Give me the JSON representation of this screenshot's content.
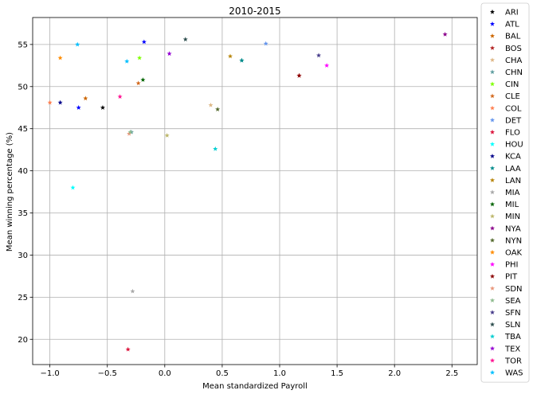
{
  "chart_data": {
    "type": "scatter",
    "title": "2010-2015",
    "xlabel": "Mean standardized Payroll",
    "ylabel": "Mean winning percentage (%)",
    "xlim": [
      -1.15,
      2.72
    ],
    "ylim": [
      17.0,
      58.2
    ],
    "xticks": [
      -1.0,
      -0.5,
      0.0,
      0.5,
      1.0,
      1.5,
      2.0,
      2.5
    ],
    "xtick_labels": [
      "−1.0",
      "−0.5",
      "0.0",
      "0.5",
      "1.0",
      "1.5",
      "2.0",
      "2.5"
    ],
    "yticks": [
      20,
      25,
      30,
      35,
      40,
      45,
      50,
      55
    ],
    "ytick_labels": [
      "20",
      "25",
      "30",
      "35",
      "40",
      "45",
      "50",
      "55"
    ],
    "grid": true,
    "legend_position": "outside-right",
    "marker": "star",
    "series": [
      {
        "name": "ARI",
        "color": "#000000",
        "x": -0.54,
        "y": 47.5
      },
      {
        "name": "ATL",
        "color": "#0000ff",
        "x": -0.75,
        "y": 47.5
      },
      {
        "name": "BAL",
        "color": "#cc6600",
        "x": -0.69,
        "y": 48.6
      },
      {
        "name": "BOS",
        "color": "#b22222",
        "x": 1.17,
        "y": 51.3
      },
      {
        "name": "CHA",
        "color": "#deb887",
        "x": 0.4,
        "y": 47.8
      },
      {
        "name": "CHN",
        "color": "#5f9ea0",
        "x": -0.29,
        "y": 44.6
      },
      {
        "name": "CIN",
        "color": "#7fff00",
        "x": -0.22,
        "y": 53.4
      },
      {
        "name": "CLE",
        "color": "#d2691e",
        "x": -0.23,
        "y": 50.4
      },
      {
        "name": "COL",
        "color": "#ff7f50",
        "x": -1.0,
        "y": 48.1
      },
      {
        "name": "DET",
        "color": "#6495ed",
        "x": 0.88,
        "y": 55.1
      },
      {
        "name": "FLO",
        "color": "#dc143c",
        "x": -0.32,
        "y": 18.8
      },
      {
        "name": "HOU",
        "color": "#00ffff",
        "x": -0.8,
        "y": 38.0
      },
      {
        "name": "KCA",
        "color": "#00008b",
        "x": -0.91,
        "y": 48.1
      },
      {
        "name": "LAA",
        "color": "#008b8b",
        "x": 0.67,
        "y": 53.1
      },
      {
        "name": "LAN",
        "color": "#b8860b",
        "x": 0.57,
        "y": 53.6
      },
      {
        "name": "MIA",
        "color": "#a9a9a9",
        "x": -0.28,
        "y": 25.7
      },
      {
        "name": "MIL",
        "color": "#006400",
        "x": -0.19,
        "y": 50.8
      },
      {
        "name": "MIN",
        "color": "#bdb76b",
        "x": 0.02,
        "y": 44.2
      },
      {
        "name": "NYA",
        "color": "#8b008b",
        "x": 2.44,
        "y": 56.2
      },
      {
        "name": "NYN",
        "color": "#556b2f",
        "x": 0.46,
        "y": 47.3
      },
      {
        "name": "OAK",
        "color": "#ff8c00",
        "x": -0.91,
        "y": 53.4
      },
      {
        "name": "PHI",
        "color": "#ff00ff",
        "x": 1.41,
        "y": 52.5
      },
      {
        "name": "PIT",
        "color": "#8b0000",
        "x": 1.17,
        "y": 51.3
      },
      {
        "name": "SDN",
        "color": "#e9967a",
        "x": -0.31,
        "y": 44.4
      },
      {
        "name": "SEA",
        "color": "#8fbc8f",
        "x": -0.3,
        "y": 44.6
      },
      {
        "name": "SFN",
        "color": "#483d8b",
        "x": 1.34,
        "y": 53.7
      },
      {
        "name": "SLN",
        "color": "#2f4f4f",
        "x": 0.18,
        "y": 55.6
      },
      {
        "name": "TBA",
        "color": "#00ced1",
        "x": 0.44,
        "y": 42.6
      },
      {
        "name": "TEX",
        "color": "#9400d3",
        "x": 0.04,
        "y": 53.9
      },
      {
        "name": "TOR",
        "color": "#ff1493",
        "x": -0.39,
        "y": 48.8
      },
      {
        "name": "WAS",
        "color": "#00bfff",
        "x": -0.76,
        "y": 55.0
      }
    ],
    "extra_points": [
      {
        "color": "#0000ff",
        "x": -0.18,
        "y": 55.3
      },
      {
        "color": "#00bfff",
        "x": -0.33,
        "y": 53.0
      },
      {
        "color": "#008b8b",
        "x": 0.67,
        "y": 53.1
      }
    ]
  }
}
